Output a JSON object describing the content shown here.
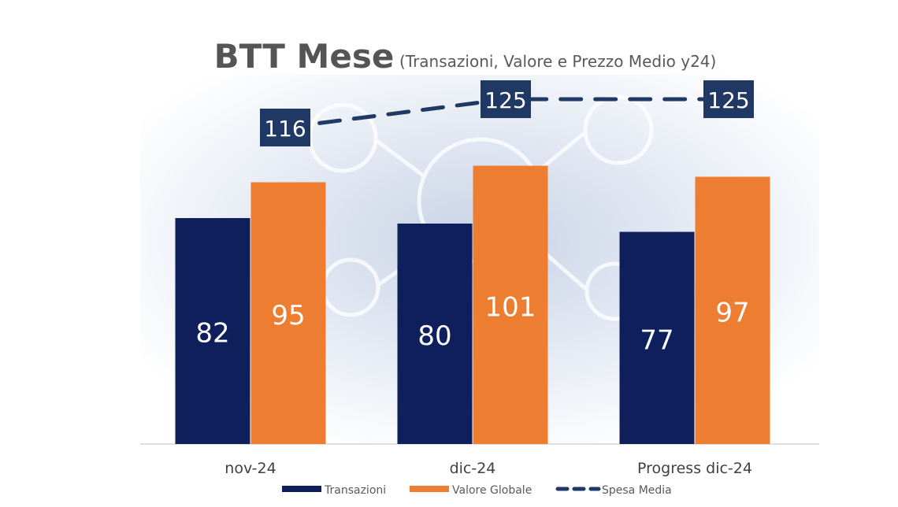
{
  "chart_data": {
    "type": "bar",
    "title": "BTT Mese",
    "subtitle": "(Transazioni, Valore e Prezzo Medio y24)",
    "categories": [
      "nov-24",
      "dic-24",
      "Progress dic-24"
    ],
    "series": [
      {
        "name": "Transazioni",
        "type": "bar",
        "values": [
          82,
          80,
          77
        ],
        "color": "#0f1f5c"
      },
      {
        "name": "Valore Globale",
        "type": "bar",
        "values": [
          95,
          101,
          97
        ],
        "color": "#ed7d31"
      },
      {
        "name": "Spesa Media",
        "type": "line",
        "style": "dashed",
        "values": [
          116,
          125,
          125
        ],
        "color": "#1f3864"
      }
    ],
    "ylim": [
      0,
      125
    ],
    "legend_position": "bottom",
    "grid": false
  }
}
